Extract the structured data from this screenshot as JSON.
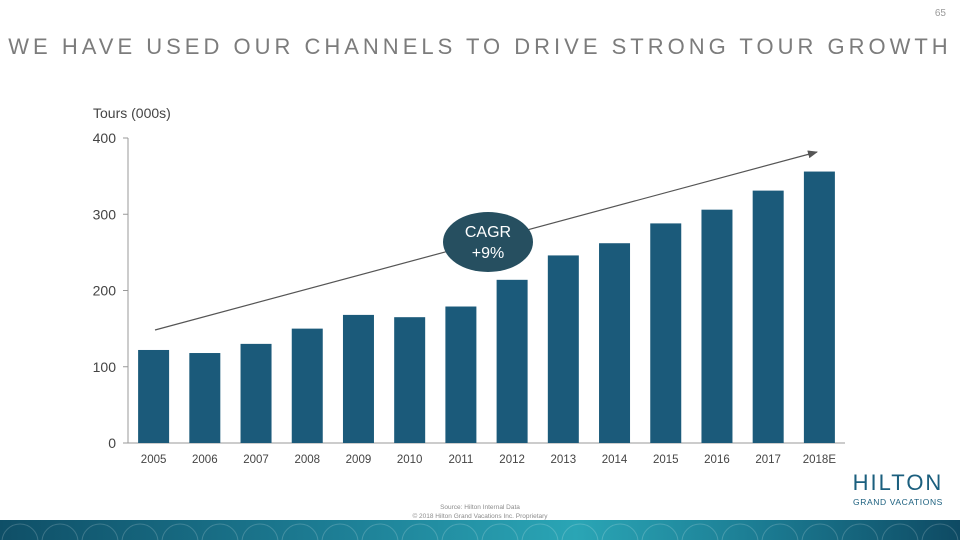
{
  "page": {
    "number": "65",
    "title": "WE HAVE USED OUR CHANNELS TO DRIVE STRONG TOUR GROWTH"
  },
  "chart_data": {
    "type": "bar",
    "ylabel": "Tours (000s)",
    "ylim": [
      0,
      400
    ],
    "yticks": [
      0,
      100,
      200,
      300,
      400
    ],
    "categories": [
      "2005",
      "2006",
      "2007",
      "2008",
      "2009",
      "2010",
      "2011",
      "2012",
      "2013",
      "2014",
      "2015",
      "2016",
      "2017",
      "2018E"
    ],
    "values": [
      122,
      118,
      130,
      150,
      168,
      165,
      179,
      214,
      246,
      262,
      288,
      306,
      331,
      356
    ],
    "bar_color": "#1b5a7a",
    "grid": false,
    "annotation": {
      "type": "trend-arrow",
      "badge_lines": [
        "CAGR",
        "+9%"
      ],
      "badge_color": "#264f60"
    }
  },
  "footer": {
    "source": "Source: Hilton Internal Data",
    "copyright": "© 2018 Hilton Grand Vacations Inc. Proprietary"
  },
  "logo": {
    "main": "HILTON",
    "sub": "GRAND VACATIONS",
    "color": "#1b5f7e"
  },
  "footer_band": {
    "color": "#1d7e95"
  }
}
